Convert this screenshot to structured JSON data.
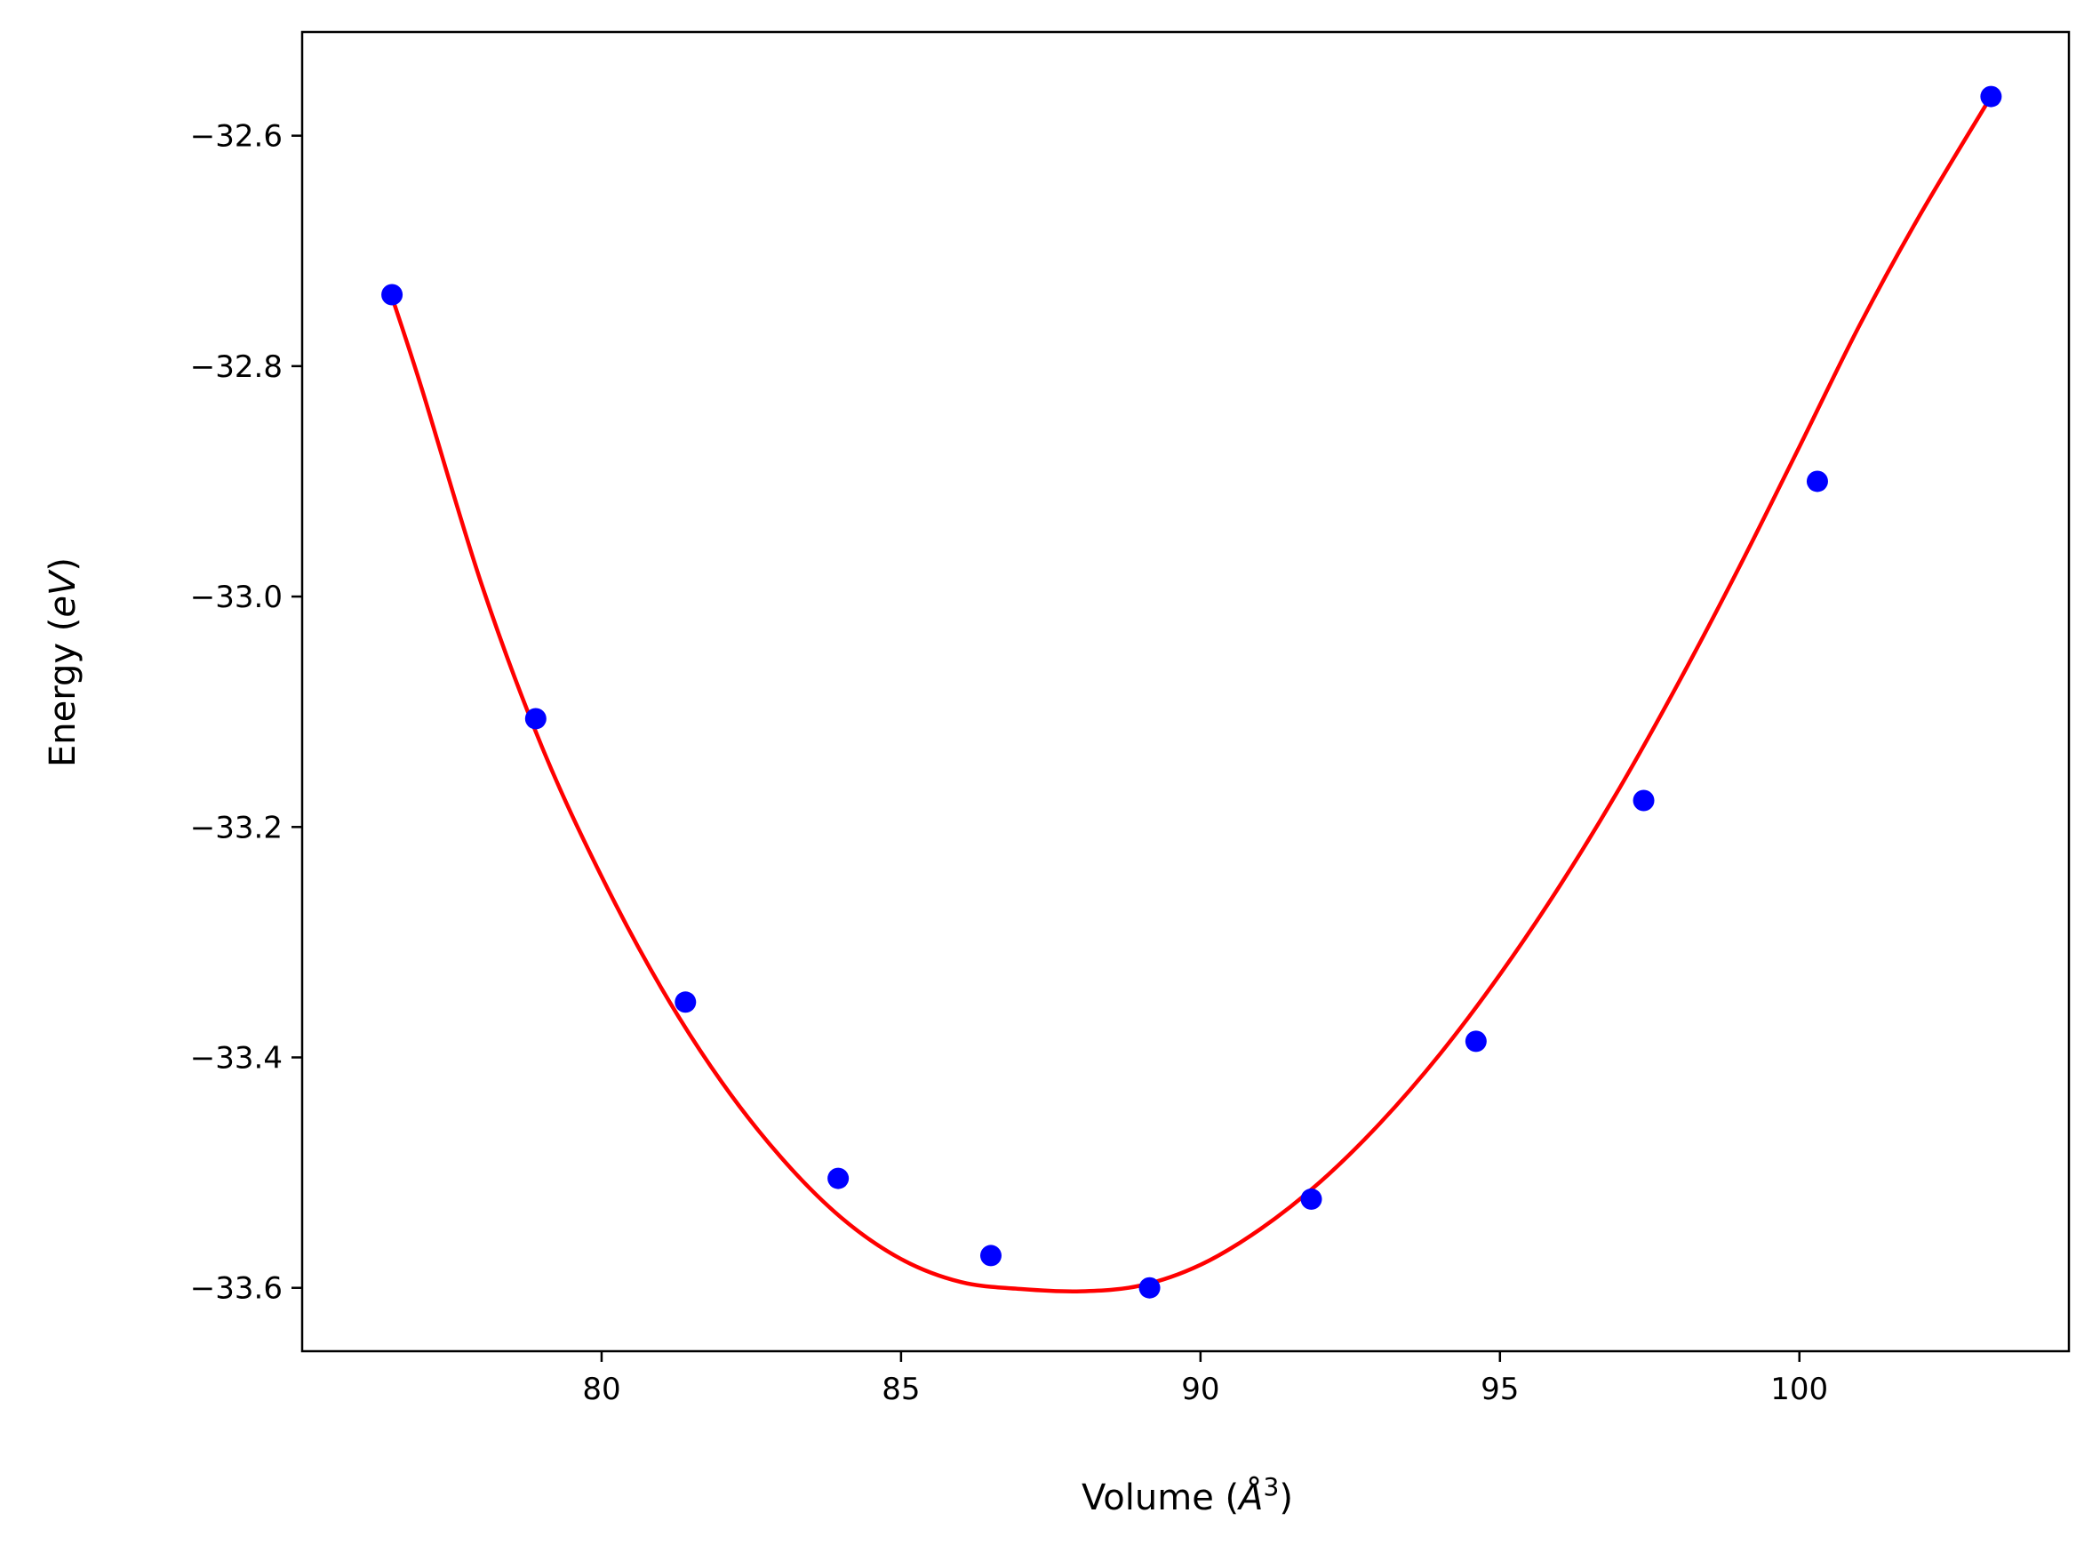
{
  "chart_data": {
    "type": "scatter",
    "xlabel": {
      "prefix": "Volume (",
      "symbol": "Å",
      "sup": "3",
      "suffix": ")"
    },
    "ylabel": {
      "prefix": "Energy (",
      "unit": "eV",
      "suffix": ")"
    },
    "xlim": [
      75.0,
      104.5
    ],
    "ylim": [
      -33.655,
      -32.51
    ],
    "xticks": [
      80,
      85,
      90,
      95,
      100
    ],
    "xtick_labels": [
      "80",
      "85",
      "90",
      "95",
      "100"
    ],
    "yticks": [
      -33.6,
      -33.4,
      -33.2,
      -33.0,
      -32.8,
      -32.6
    ],
    "ytick_labels": [
      "−33.6",
      "−33.4",
      "−33.2",
      "−33.0",
      "−32.8",
      "−32.6"
    ],
    "grid": false,
    "series": [
      {
        "kind": "points",
        "color": "#0000ff",
        "x": [
          76.5,
          78.9,
          81.4,
          83.95,
          86.5,
          89.15,
          91.85,
          94.6,
          97.4,
          100.3,
          103.2
        ],
        "y": [
          -32.738,
          -33.106,
          -33.352,
          -33.505,
          -33.572,
          -33.6,
          -33.523,
          -33.386,
          -33.177,
          -32.9,
          -32.566
        ]
      },
      {
        "kind": "fit-curve",
        "color": "#ff0000",
        "x": [
          76.5,
          77.0,
          78.0,
          79.0,
          80.0,
          81.0,
          82.0,
          83.0,
          84.0,
          85.0,
          86.0,
          87.0,
          88.0,
          89.0,
          90.0,
          91.0,
          92.0,
          93.0,
          94.0,
          95.0,
          96.0,
          97.0,
          98.0,
          99.0,
          100.0,
          101.0,
          102.0,
          103.2
        ],
        "y": [
          -32.74,
          -32.82,
          -32.99,
          -33.13,
          -33.243,
          -33.34,
          -33.421,
          -33.487,
          -33.539,
          -33.575,
          -33.595,
          -33.601,
          -33.603,
          -33.598,
          -33.58,
          -33.549,
          -33.508,
          -33.457,
          -33.397,
          -33.328,
          -33.251,
          -33.166,
          -33.073,
          -32.974,
          -32.87,
          -32.765,
          -32.67,
          -32.566
        ]
      }
    ]
  }
}
